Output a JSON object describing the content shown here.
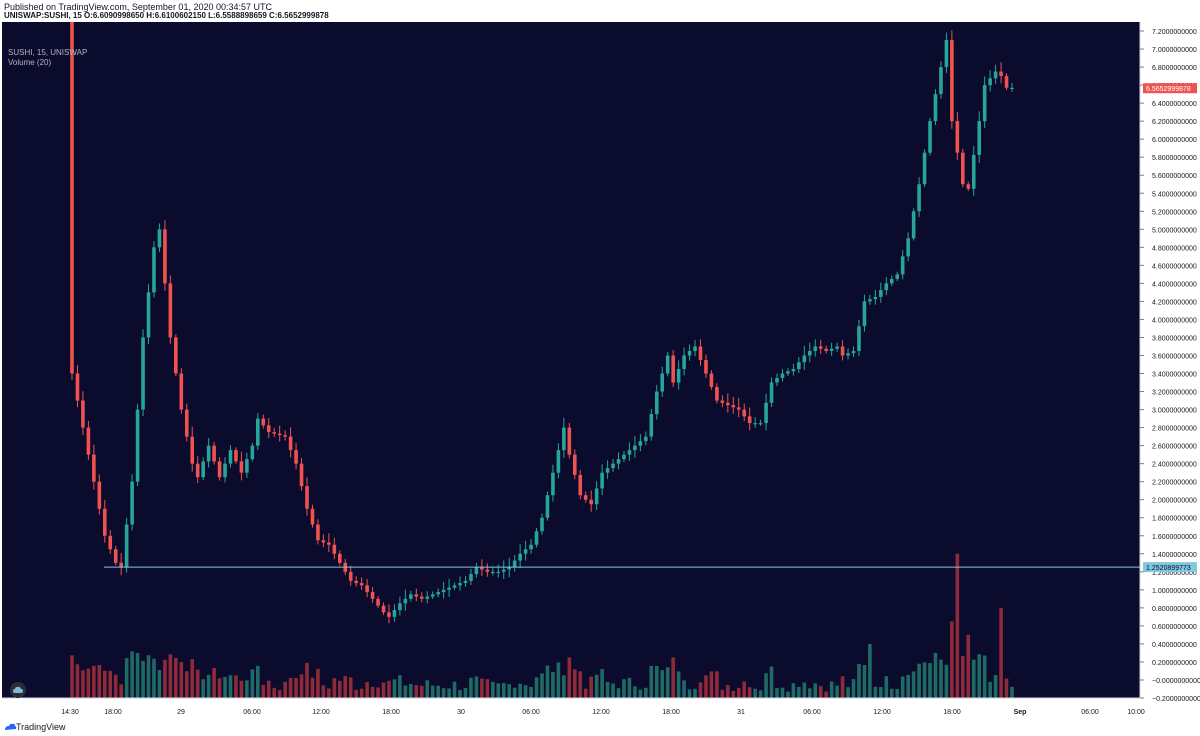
{
  "header": {
    "published": "Published on TradingView.com, September 01, 2020 00:34:57 UTC",
    "ohlc": "UNISWAP:SUSHI, 15  O:6.6090998650  H:6.6100602150  L:6.5588898659  C:6.5652999878"
  },
  "legend": {
    "symbol": "SUSHI, 15, UNISWAP",
    "volume": "Volume (20)"
  },
  "footer": {
    "brand": "TradingView"
  },
  "colors": {
    "background": "#0b0b2e",
    "up": "#26a69a",
    "down": "#ef5350",
    "up_volume": "#1f6b63",
    "down_volume": "#8f2a38",
    "hline": "#7fc8e0",
    "last_price_bg": "#ef5350",
    "hline_label_bg": "#7fc8e0",
    "axis_text": "#131722"
  },
  "chart_data": {
    "type": "candlestick",
    "symbol": "UNISWAP:SUSHI",
    "interval": "15",
    "x": {
      "tick_labels": [
        "14:30",
        "18:00",
        "29",
        "06:00",
        "12:00",
        "18:00",
        "30",
        "06:00",
        "12:00",
        "18:00",
        "31",
        "06:00",
        "12:00",
        "18:00",
        "Sep",
        "06:00",
        "10:00"
      ]
    },
    "y": {
      "range": [
        -0.2,
        7.3
      ],
      "tick_labels": [
        "7.2000000000",
        "7.0000000000",
        "6.8000000000",
        "6.6000000000",
        "6.4000000000",
        "6.2000000000",
        "6.0000000000",
        "5.8000000000",
        "5.6000000000",
        "5.4000000000",
        "5.2000000000",
        "5.0000000000",
        "4.8000000000",
        "4.6000000000",
        "4.4000000000",
        "4.2000000000",
        "4.0000000000",
        "3.8000000000",
        "3.6000000000",
        "3.4000000000",
        "3.2000000000",
        "3.0000000000",
        "2.8000000000",
        "2.6000000000",
        "2.4000000000",
        "2.2000000000",
        "2.0000000000",
        "1.8000000000",
        "1.6000000000",
        "1.4000000000",
        "1.2000000000",
        "1.0000000000",
        "0.8000000000",
        "0.6000000000",
        "0.4000000000",
        "0.2000000000",
        "−0.0000000000",
        "−0.2000000000"
      ]
    },
    "price_path": [
      [
        0,
        7.3
      ],
      [
        1,
        3.4
      ],
      [
        3,
        2.8
      ],
      [
        5,
        2.2
      ],
      [
        7,
        1.6
      ],
      [
        9,
        1.3
      ],
      [
        10,
        1.25
      ],
      [
        12,
        2.2
      ],
      [
        14,
        3.8
      ],
      [
        16,
        4.8
      ],
      [
        17,
        5.0
      ],
      [
        19,
        3.8
      ],
      [
        21,
        3.0
      ],
      [
        23,
        2.4
      ],
      [
        24,
        2.25
      ],
      [
        26,
        2.6
      ],
      [
        28,
        2.25
      ],
      [
        30,
        2.55
      ],
      [
        32,
        2.3
      ],
      [
        34,
        2.6
      ],
      [
        35,
        2.9
      ],
      [
        37,
        2.75
      ],
      [
        40,
        2.7
      ],
      [
        42,
        2.4
      ],
      [
        44,
        1.9
      ],
      [
        46,
        1.55
      ],
      [
        48,
        1.5
      ],
      [
        50,
        1.3
      ],
      [
        52,
        1.1
      ],
      [
        54,
        1.05
      ],
      [
        56,
        0.9
      ],
      [
        58,
        0.75
      ],
      [
        59,
        0.7
      ],
      [
        61,
        0.85
      ],
      [
        63,
        0.95
      ],
      [
        65,
        0.9
      ],
      [
        67,
        0.95
      ],
      [
        69,
        1.0
      ],
      [
        71,
        1.05
      ],
      [
        73,
        1.1
      ],
      [
        75,
        1.25
      ],
      [
        77,
        1.2
      ],
      [
        79,
        1.2
      ],
      [
        81,
        1.25
      ],
      [
        83,
        1.4
      ],
      [
        85,
        1.5
      ],
      [
        87,
        1.8
      ],
      [
        89,
        2.3
      ],
      [
        91,
        2.8
      ],
      [
        92,
        2.5
      ],
      [
        94,
        2.05
      ],
      [
        96,
        1.95
      ],
      [
        98,
        2.3
      ],
      [
        100,
        2.4
      ],
      [
        102,
        2.5
      ],
      [
        104,
        2.6
      ],
      [
        106,
        2.7
      ],
      [
        108,
        3.2
      ],
      [
        110,
        3.6
      ],
      [
        111,
        3.3
      ],
      [
        113,
        3.6
      ],
      [
        115,
        3.7
      ],
      [
        117,
        3.4
      ],
      [
        119,
        3.1
      ],
      [
        121,
        3.05
      ],
      [
        123,
        3.0
      ],
      [
        125,
        2.85
      ],
      [
        127,
        2.85
      ],
      [
        129,
        3.3
      ],
      [
        131,
        3.4
      ],
      [
        133,
        3.45
      ],
      [
        135,
        3.6
      ],
      [
        137,
        3.7
      ],
      [
        139,
        3.65
      ],
      [
        141,
        3.7
      ],
      [
        142,
        3.6
      ],
      [
        144,
        3.65
      ],
      [
        146,
        4.2
      ],
      [
        148,
        4.25
      ],
      [
        150,
        4.4
      ],
      [
        152,
        4.5
      ],
      [
        154,
        4.9
      ],
      [
        156,
        5.5
      ],
      [
        158,
        6.2
      ],
      [
        160,
        6.8
      ],
      [
        161,
        7.1
      ],
      [
        162,
        6.2
      ],
      [
        164,
        5.5
      ],
      [
        165,
        5.45
      ],
      [
        167,
        6.2
      ],
      [
        168,
        6.6
      ],
      [
        170,
        6.75
      ],
      [
        171,
        6.7
      ],
      [
        172,
        6.57
      ]
    ],
    "volume_spikes": [
      [
        162,
        1.6
      ],
      [
        170,
        1.0
      ],
      [
        161,
        0.85
      ],
      [
        164,
        0.7
      ],
      [
        146,
        0.6
      ],
      [
        91,
        0.45
      ],
      [
        110,
        0.45
      ],
      [
        158,
        0.5
      ]
    ],
    "last_price": {
      "label": "6.5652999878",
      "value": 6.5652999878
    },
    "horizontal_line": {
      "label": "1.2520899773",
      "value": 1.2520899773
    }
  }
}
